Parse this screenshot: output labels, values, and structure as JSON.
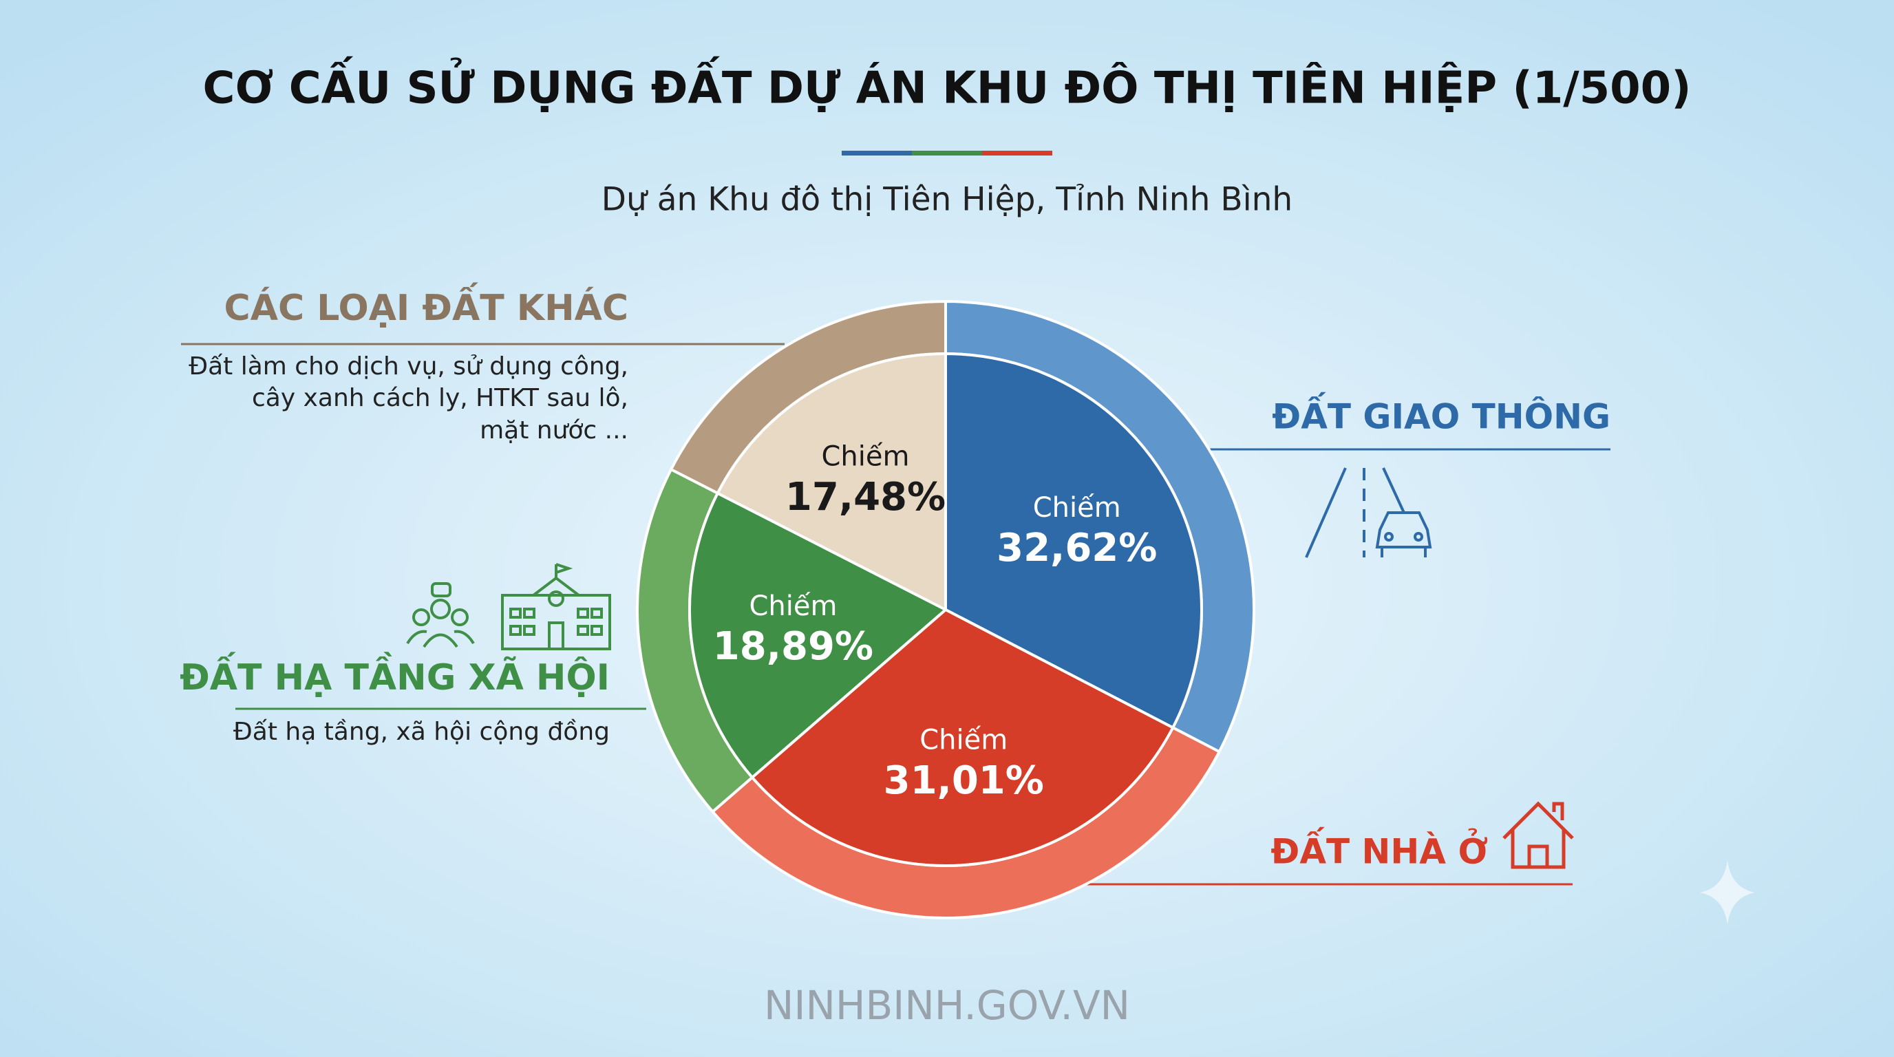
{
  "chart_data": {
    "type": "pie",
    "title": "CƠ CẤU SỬ DỤNG ĐẤT DỰ ÁN KHU ĐÔ THỊ TIÊN HIỆP (1/500)",
    "subtitle": "Dự án Khu đô thị Tiên Hiệp, Tỉnh Ninh Bình",
    "categories": [
      "ĐẤT GIAO THÔNG",
      "ĐẤT NHÀ Ở",
      "ĐẤT HẠ TẦNG XÃ HỘI",
      "CÁC LOẠI ĐẤT KHÁC"
    ],
    "values": [
      32.62,
      31.01,
      18.89,
      17.48
    ],
    "value_labels": [
      "32,62%",
      "31,01%",
      "18,89%",
      "17,48%"
    ],
    "value_prefix": "Chiếm",
    "colors": [
      "#2e6aa8",
      "#d63d28",
      "#3f8f46",
      "#e8d9c4"
    ],
    "ring_colors": [
      "#5f97cc",
      "#ec6f5a",
      "#6aab5f",
      "#b59c80"
    ],
    "social_description": "Đất hạ tầng, xã hội cộng đồng",
    "other_description": [
      "Đất làm cho dịch vụ, sử dụng công,",
      "cây xanh cách ly, HTKT sau lô,",
      "mặt nước ..."
    ],
    "source": "NINHBINH.GOV.VN"
  }
}
